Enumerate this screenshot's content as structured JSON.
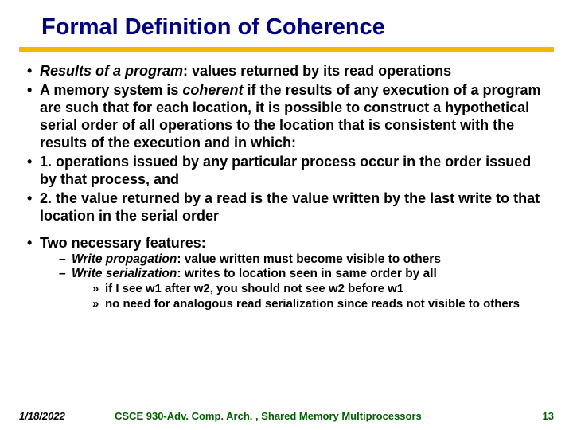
{
  "colors": {
    "title_color": "#000080",
    "rule_color": "#f2b800",
    "footer_green": "#006000",
    "background": "#ffffff",
    "text": "#000000"
  },
  "title": "Formal Definition of Coherence",
  "bullets": {
    "b1_pre": "Results of a program",
    "b1_post": ": values returned by its read operations",
    "b2_pre": "A memory system is ",
    "b2_em": "coherent",
    "b2_post": " if the results of any execution of a program are such that for each location, it is possible to construct a hypothetical serial order of all operations to the location that is consistent with the results of the execution and in which:",
    "b3": "1. operations issued by any particular process occur in the order issued by that process, and",
    "b4": "2. the value returned by a read is the value written by the last write to that location in the serial order",
    "b5": "Two necessary features:"
  },
  "sub": {
    "s1_pre": "Write propagation",
    "s1_post": ": value written must become visible to others",
    "s2_pre": "Write serialization",
    "s2_post": ": writes to location seen in same order by all",
    "a1": "if I see w1 after w2, you should not see w2 before w1",
    "a2": "no need for analogous read serialization since reads not visible to others"
  },
  "footer": {
    "date": "1/18/2022",
    "course": "CSCE 930-Adv. Comp. Arch. , Shared Memory Multiprocessors",
    "page": "13"
  }
}
